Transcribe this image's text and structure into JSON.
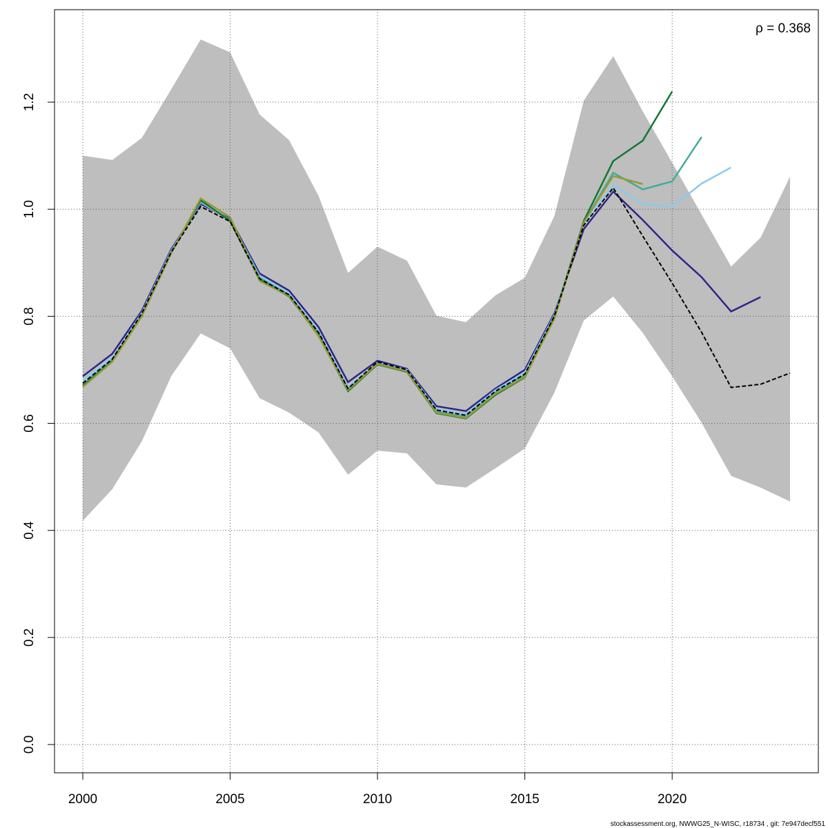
{
  "chart_data": {
    "type": "line",
    "annotation": "ρ = 0.368",
    "footer": "stockassessment.org, NWWG25_N-WISC, r18734 , git: 7e947decf551",
    "x": [
      2000,
      2001,
      2002,
      2003,
      2004,
      2005,
      2006,
      2007,
      2008,
      2009,
      2010,
      2011,
      2012,
      2013,
      2014,
      2015,
      2016,
      2017,
      2018,
      2019,
      2020,
      2021,
      2022,
      2023,
      2024
    ],
    "band": {
      "color": "#bebebe",
      "upper": [
        1.1,
        1.092,
        1.133,
        1.224,
        1.317,
        1.293,
        1.177,
        1.129,
        1.025,
        0.881,
        0.93,
        0.904,
        0.801,
        0.789,
        0.839,
        0.872,
        0.987,
        1.203,
        1.286,
        1.183,
        1.087,
        0.99,
        0.893,
        0.947,
        1.061
      ],
      "lower": [
        0.418,
        0.477,
        0.566,
        0.688,
        0.768,
        0.74,
        0.647,
        0.62,
        0.583,
        0.504,
        0.549,
        0.544,
        0.486,
        0.48,
        0.516,
        0.553,
        0.657,
        0.792,
        0.837,
        0.769,
        0.688,
        0.601,
        0.502,
        0.48,
        0.454
      ]
    },
    "series": [
      {
        "color": "#332288",
        "values": [
          0.688,
          0.73,
          0.81,
          0.925,
          1.01,
          0.982,
          0.88,
          0.848,
          0.78,
          0.677,
          0.717,
          0.702,
          0.632,
          0.623,
          0.665,
          0.7,
          0.805,
          0.963,
          1.033,
          0.98,
          0.923,
          0.873,
          0.809,
          0.836,
          null
        ]
      },
      {
        "color": "#88ccee",
        "values": [
          0.68,
          0.722,
          0.806,
          0.922,
          1.013,
          0.98,
          0.875,
          0.843,
          0.772,
          0.668,
          0.713,
          0.7,
          0.627,
          0.617,
          0.662,
          0.695,
          0.802,
          0.972,
          1.045,
          1.01,
          1.005,
          1.048,
          1.078,
          null,
          null
        ]
      },
      {
        "color": "#44aa99",
        "values": [
          0.672,
          0.718,
          0.802,
          0.92,
          1.015,
          0.98,
          0.872,
          0.84,
          0.768,
          0.664,
          0.712,
          0.698,
          0.622,
          0.612,
          0.657,
          0.69,
          0.8,
          0.975,
          1.068,
          1.037,
          1.052,
          1.135,
          null,
          null,
          null
        ]
      },
      {
        "color": "#117733",
        "values": [
          0.67,
          0.716,
          0.8,
          0.918,
          1.017,
          0.978,
          0.868,
          0.837,
          0.765,
          0.66,
          0.71,
          0.696,
          0.619,
          0.609,
          0.653,
          0.686,
          0.797,
          0.978,
          1.09,
          1.128,
          1.22,
          null,
          null,
          null,
          null
        ]
      },
      {
        "color": "#999933",
        "values": [
          0.668,
          0.715,
          0.8,
          0.918,
          1.02,
          0.985,
          0.866,
          0.838,
          0.763,
          0.662,
          0.711,
          0.697,
          0.62,
          0.61,
          0.655,
          0.687,
          0.795,
          0.975,
          1.062,
          1.047,
          null,
          null,
          null,
          null,
          null
        ]
      },
      {
        "color": "#000000",
        "dashed": true,
        "values": [
          0.675,
          0.72,
          0.805,
          0.92,
          1.005,
          0.977,
          0.87,
          0.84,
          0.77,
          0.665,
          0.715,
          0.7,
          0.625,
          0.615,
          0.66,
          0.692,
          0.8,
          0.97,
          1.04,
          0.95,
          0.862,
          0.77,
          0.667,
          0.673,
          0.694
        ]
      }
    ],
    "xlim": [
      1999.04,
      2024.96
    ],
    "ylim": [
      -0.0528,
      1.3728
    ],
    "xticks": [
      2000,
      2005,
      2010,
      2015,
      2020
    ],
    "yticks": [
      {
        "value": 0,
        "label": "0.0"
      },
      0.2,
      0.4,
      0.6,
      0.8,
      {
        "value": 1,
        "label": "1.0"
      },
      1.2
    ],
    "grid": true
  }
}
